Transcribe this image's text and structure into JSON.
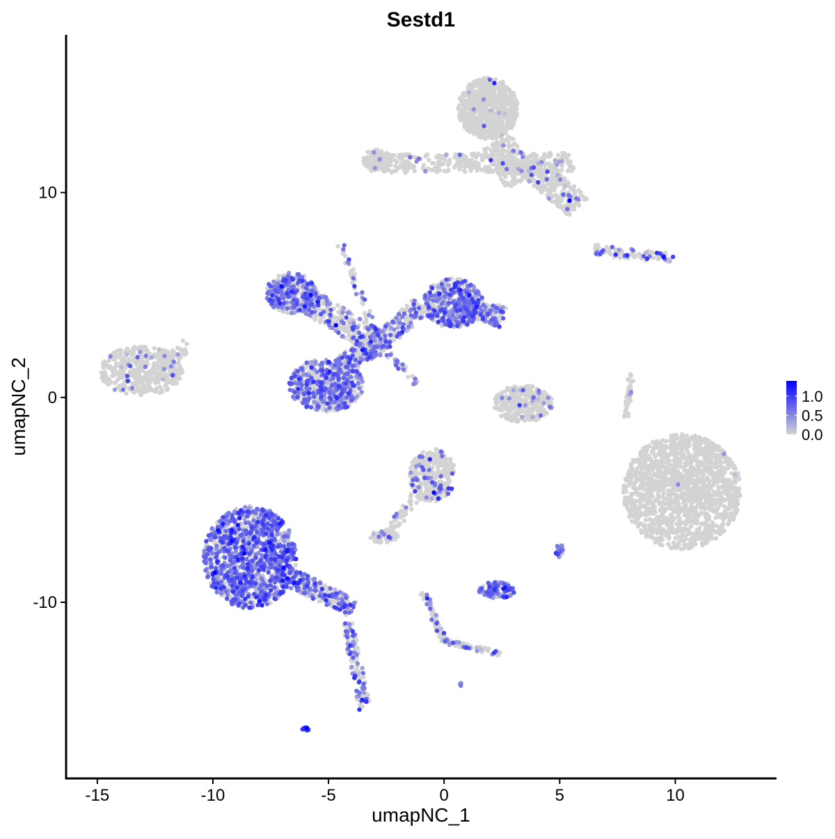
{
  "chart_data": {
    "type": "scatter",
    "title": "Sestd1",
    "xlabel": "umapNC_1",
    "ylabel": "umapNC_2",
    "xlim": [
      -16.35,
      14.35
    ],
    "ylim": [
      -18.6,
      17.7
    ],
    "x_ticks": [
      -15,
      -10,
      -5,
      0,
      5,
      10
    ],
    "y_ticks": [
      -10,
      0,
      10
    ],
    "x_tick_labels": [
      "-15",
      "-10",
      "-5",
      "0",
      "5",
      "10"
    ],
    "y_tick_labels": [
      "-10",
      "0",
      "10"
    ],
    "grid": false,
    "legend": {
      "position": "right",
      "type": "colorbar",
      "ticks": [
        0.0,
        0.5,
        1.0
      ],
      "tick_labels": [
        "0.0",
        "0.5",
        "1.0"
      ],
      "range": [
        0,
        1.4
      ]
    },
    "colors": {
      "low": "#d3d3d3",
      "high": "#0000ff"
    },
    "clusters": [
      {
        "type": "blob",
        "x": 1.9,
        "y": 14.1,
        "rx": 1.3,
        "ry": 1.5,
        "n": 700,
        "frac_expr": 0.01,
        "level": 0.5
      },
      {
        "type": "segment",
        "from": [
          -3.3,
          11.4
        ],
        "to": [
          5.6,
          11.5
        ],
        "width": 0.45,
        "n": 380,
        "frac_expr": 0.04,
        "level": 0.5
      },
      {
        "type": "blob",
        "x": -2.9,
        "y": 11.6,
        "rx": 0.6,
        "ry": 0.5,
        "n": 90,
        "frac_expr": 0.05,
        "level": 0.5
      },
      {
        "type": "segment",
        "from": [
          2.3,
          12.5
        ],
        "to": [
          3.3,
          10.5
        ],
        "width": 0.7,
        "n": 160,
        "frac_expr": 0.05,
        "level": 0.5
      },
      {
        "type": "segment",
        "from": [
          3.6,
          11.4
        ],
        "to": [
          5.8,
          9.3
        ],
        "width": 0.6,
        "n": 260,
        "frac_expr": 0.07,
        "level": 0.6
      },
      {
        "type": "segment",
        "from": [
          6.5,
          7.2
        ],
        "to": [
          9.9,
          6.8
        ],
        "width": 0.25,
        "n": 90,
        "frac_expr": 0.25,
        "level": 0.8
      },
      {
        "type": "blob",
        "x": -13.1,
        "y": 1.3,
        "rx": 1.8,
        "ry": 1.2,
        "n": 420,
        "frac_expr": 0.05,
        "level": 0.5
      },
      {
        "type": "segment",
        "from": [
          -12.0,
          1.6
        ],
        "to": [
          -11.1,
          2.7
        ],
        "width": 0.3,
        "n": 40,
        "frac_expr": 0.05,
        "level": 0.5
      },
      {
        "type": "blob",
        "x": -6.6,
        "y": 5.1,
        "rx": 1.1,
        "ry": 1.0,
        "n": 300,
        "frac_expr": 0.55,
        "level": 0.6
      },
      {
        "type": "segment",
        "from": [
          -6.0,
          4.8
        ],
        "to": [
          -2.8,
          2.6
        ],
        "width": 0.6,
        "n": 260,
        "frac_expr": 0.35,
        "level": 0.6
      },
      {
        "type": "blob",
        "x": 0.4,
        "y": 4.6,
        "rx": 1.3,
        "ry": 1.2,
        "n": 450,
        "frac_expr": 0.5,
        "level": 0.6
      },
      {
        "type": "segment",
        "from": [
          0.5,
          4.6
        ],
        "to": [
          2.6,
          3.9
        ],
        "width": 0.5,
        "n": 200,
        "frac_expr": 0.45,
        "level": 0.6
      },
      {
        "type": "segment",
        "from": [
          -1.0,
          4.5
        ],
        "to": [
          -2.8,
          2.6
        ],
        "width": 0.45,
        "n": 140,
        "frac_expr": 0.45,
        "level": 0.6
      },
      {
        "type": "segment",
        "from": [
          -4.5,
          7.5
        ],
        "to": [
          -2.8,
          2.6
        ],
        "width": 0.15,
        "n": 50,
        "frac_expr": 0.3,
        "level": 0.6
      },
      {
        "type": "segment",
        "from": [
          -2.8,
          2.6
        ],
        "to": [
          -1.2,
          0.7
        ],
        "width": 0.15,
        "n": 40,
        "frac_expr": 0.4,
        "level": 0.6
      },
      {
        "type": "blob",
        "x": -5.1,
        "y": 0.6,
        "rx": 1.6,
        "ry": 1.3,
        "n": 520,
        "frac_expr": 0.55,
        "level": 0.6
      },
      {
        "type": "segment",
        "from": [
          -4.5,
          1.5
        ],
        "to": [
          -2.8,
          2.6
        ],
        "width": 0.5,
        "n": 140,
        "frac_expr": 0.5,
        "level": 0.6
      },
      {
        "type": "blob",
        "x": -8.4,
        "y": -7.8,
        "rx": 2.0,
        "ry": 2.5,
        "n": 1100,
        "frac_expr": 0.7,
        "level": 0.65
      },
      {
        "type": "segment",
        "from": [
          -7.0,
          -8.6
        ],
        "to": [
          -3.9,
          -10.3
        ],
        "width": 0.45,
        "n": 260,
        "frac_expr": 0.45,
        "level": 0.65
      },
      {
        "type": "segment",
        "from": [
          -4.2,
          -11.0
        ],
        "to": [
          -3.4,
          -15.3
        ],
        "width": 0.25,
        "n": 120,
        "frac_expr": 0.45,
        "level": 0.7
      },
      {
        "type": "blob",
        "x": -6.0,
        "y": -16.2,
        "rx": 0.15,
        "ry": 0.1,
        "n": 15,
        "frac_expr": 1.0,
        "level": 0.9
      },
      {
        "type": "blob",
        "x": -0.5,
        "y": -3.8,
        "rx": 1.0,
        "ry": 1.3,
        "n": 330,
        "frac_expr": 0.12,
        "level": 0.7
      },
      {
        "type": "segment",
        "from": [
          -1.2,
          -4.8
        ],
        "to": [
          -2.5,
          -6.8
        ],
        "width": 0.25,
        "n": 60,
        "frac_expr": 0.1,
        "level": 0.5
      },
      {
        "type": "blob",
        "x": -2.6,
        "y": -6.8,
        "rx": 0.6,
        "ry": 0.3,
        "n": 60,
        "frac_expr": 0.1,
        "level": 0.5
      },
      {
        "type": "blob",
        "x": 10.3,
        "y": -4.6,
        "rx": 2.55,
        "ry": 2.8,
        "n": 1500,
        "frac_expr": 0.004,
        "level": 0.6
      },
      {
        "type": "blob",
        "x": 3.4,
        "y": -0.3,
        "rx": 1.3,
        "ry": 0.9,
        "n": 300,
        "frac_expr": 0.08,
        "level": 0.5
      },
      {
        "type": "segment",
        "from": [
          7.9,
          -1.0
        ],
        "to": [
          8.1,
          1.2
        ],
        "width": 0.12,
        "n": 40,
        "frac_expr": 0.08,
        "level": 0.5
      },
      {
        "type": "blob",
        "x": 2.3,
        "y": -9.4,
        "rx": 0.8,
        "ry": 0.4,
        "n": 110,
        "frac_expr": 0.6,
        "level": 0.6
      },
      {
        "type": "blob",
        "x": 5.0,
        "y": -7.5,
        "rx": 0.2,
        "ry": 0.3,
        "n": 20,
        "frac_expr": 0.7,
        "level": 0.6
      },
      {
        "type": "segment",
        "from": [
          -0.9,
          -9.5
        ],
        "to": [
          0.0,
          -11.9
        ],
        "width": 0.15,
        "n": 60,
        "frac_expr": 0.3,
        "level": 0.5
      },
      {
        "type": "segment",
        "from": [
          0.0,
          -11.9
        ],
        "to": [
          2.4,
          -12.5
        ],
        "width": 0.12,
        "n": 60,
        "frac_expr": 0.3,
        "level": 0.5
      },
      {
        "type": "blob",
        "x": 0.7,
        "y": -14.0,
        "rx": 0.1,
        "ry": 0.08,
        "n": 6,
        "frac_expr": 0.3,
        "level": 0.5
      }
    ]
  }
}
